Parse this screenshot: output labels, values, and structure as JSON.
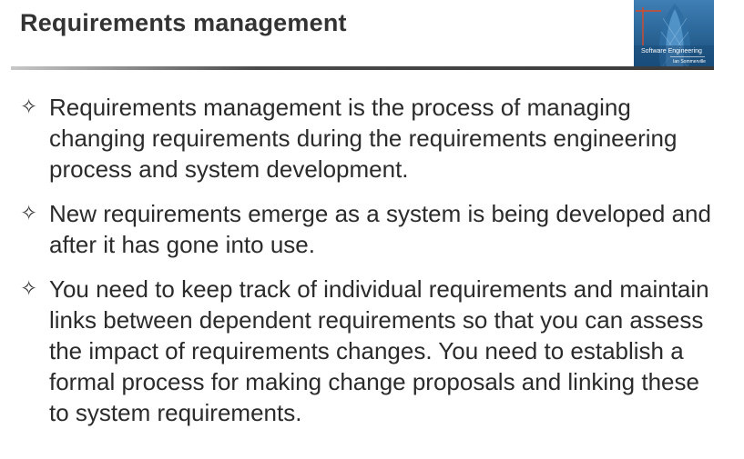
{
  "slide": {
    "title": "Requirements management"
  },
  "cover": {
    "title": "Software Engineering",
    "author": "Ian Sommerville"
  },
  "bullets": [
    {
      "icon": "diamond-star-bullet-icon",
      "text": "Requirements management is the process of managing changing requirements during the requirements engineering process and system development."
    },
    {
      "icon": "diamond-star-bullet-icon",
      "text": "New requirements emerge as a system is being developed and after it has gone into use."
    },
    {
      "icon": "diamond-star-bullet-icon",
      "text": "You need to keep track of individual requirements and maintain links between dependent requirements so that you can assess the impact of requirements changes. You need to establish a formal process for making change proposals and linking these to system requirements."
    }
  ],
  "colors": {
    "text": "#2b2b2b",
    "title": "#333333",
    "rule": "#3a3a3a"
  }
}
